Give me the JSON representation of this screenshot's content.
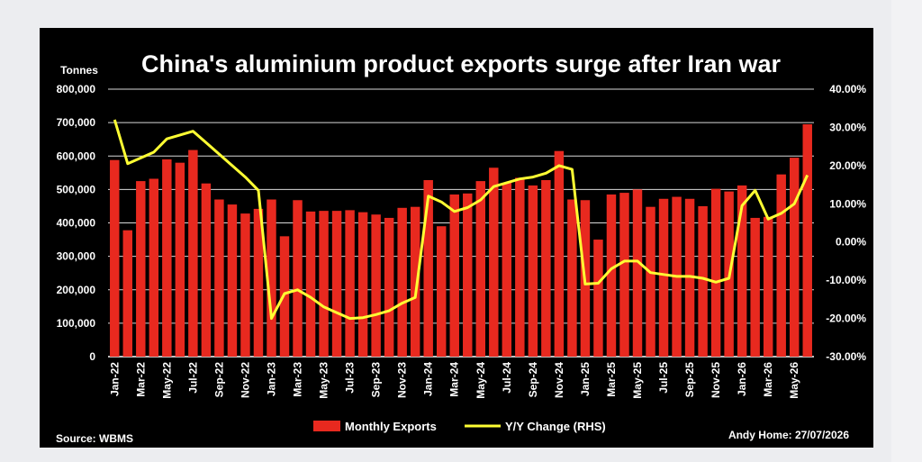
{
  "chart_data": {
    "type": "bar+line",
    "title": "China's aluminium product exports surge after Iran war",
    "ylabel": "Tonnes",
    "ylim": [
      0,
      800000
    ],
    "y2lim": [
      -0.3,
      0.4
    ],
    "yticks": [
      "800,000",
      "700,000",
      "600,000",
      "500,000",
      "400,000",
      "300,000",
      "200,000",
      "100,000",
      "0"
    ],
    "y2ticks": [
      "40.00%",
      "30.00%",
      "20.00%",
      "10.00%",
      "0.00%",
      "-10.00%",
      "-20.00%",
      "-30.00%"
    ],
    "xticks": [
      "Jan-22",
      "Mar-22",
      "May-22",
      "Jul-22",
      "Sep-22",
      "Nov-22",
      "Jan-23",
      "Mar-23",
      "May-23",
      "Jul-23",
      "Sep-23",
      "Nov-23",
      "Jan-24",
      "Mar-24",
      "May-24",
      "Jul-24",
      "Sep-24",
      "Nov-24",
      "Jan-25",
      "Mar-25",
      "May-25",
      "Jul-25",
      "Sep-25",
      "Nov-25",
      "Jan-26",
      "Mar-26",
      "May-26"
    ],
    "grid": true,
    "legend_position": "bottom-center",
    "series": [
      {
        "name": "Monthly Exports",
        "type": "bar",
        "color": "#e8291f",
        "values": [
          588000,
          378000,
          525000,
          532000,
          590000,
          580000,
          618000,
          518000,
          470000,
          455000,
          428000,
          442000,
          470000,
          360000,
          468000,
          434000,
          436000,
          436000,
          438000,
          432000,
          425000,
          415000,
          445000,
          448000,
          528000,
          390000,
          485000,
          488000,
          525000,
          565000,
          520000,
          535000,
          512000,
          528000,
          615000,
          470000,
          468000,
          350000,
          485000,
          490000,
          500000,
          448000,
          472000,
          478000,
          472000,
          450000,
          502000,
          494000,
          512000,
          415000,
          418000,
          545000,
          595000,
          695000
        ]
      },
      {
        "name": "Y/Y Change (RHS)",
        "type": "line",
        "color": "#ffff33",
        "values": [
          0.32,
          0.205,
          0.22,
          0.235,
          0.27,
          0.28,
          0.29,
          0.26,
          0.23,
          0.2,
          0.17,
          0.135,
          -0.2,
          -0.135,
          -0.125,
          -0.145,
          -0.17,
          -0.185,
          -0.2,
          -0.198,
          -0.19,
          -0.18,
          -0.16,
          -0.145,
          0.12,
          0.105,
          0.08,
          0.09,
          0.11,
          0.145,
          0.155,
          0.165,
          0.17,
          0.18,
          0.2,
          0.19,
          -0.11,
          -0.108,
          -0.07,
          -0.05,
          -0.05,
          -0.08,
          -0.085,
          -0.09,
          -0.09,
          -0.095,
          -0.105,
          -0.095,
          0.095,
          0.135,
          0.06,
          0.075,
          0.1,
          0.175
        ]
      }
    ]
  },
  "footer": {
    "source": "Source: WBMS",
    "credit": "Andy Home: 27/07/2026"
  },
  "colors": {
    "background": "#000000",
    "bar": "#e8291f",
    "line": "#ffff33",
    "grid": "#d9d9d9",
    "text": "#ffffff"
  }
}
